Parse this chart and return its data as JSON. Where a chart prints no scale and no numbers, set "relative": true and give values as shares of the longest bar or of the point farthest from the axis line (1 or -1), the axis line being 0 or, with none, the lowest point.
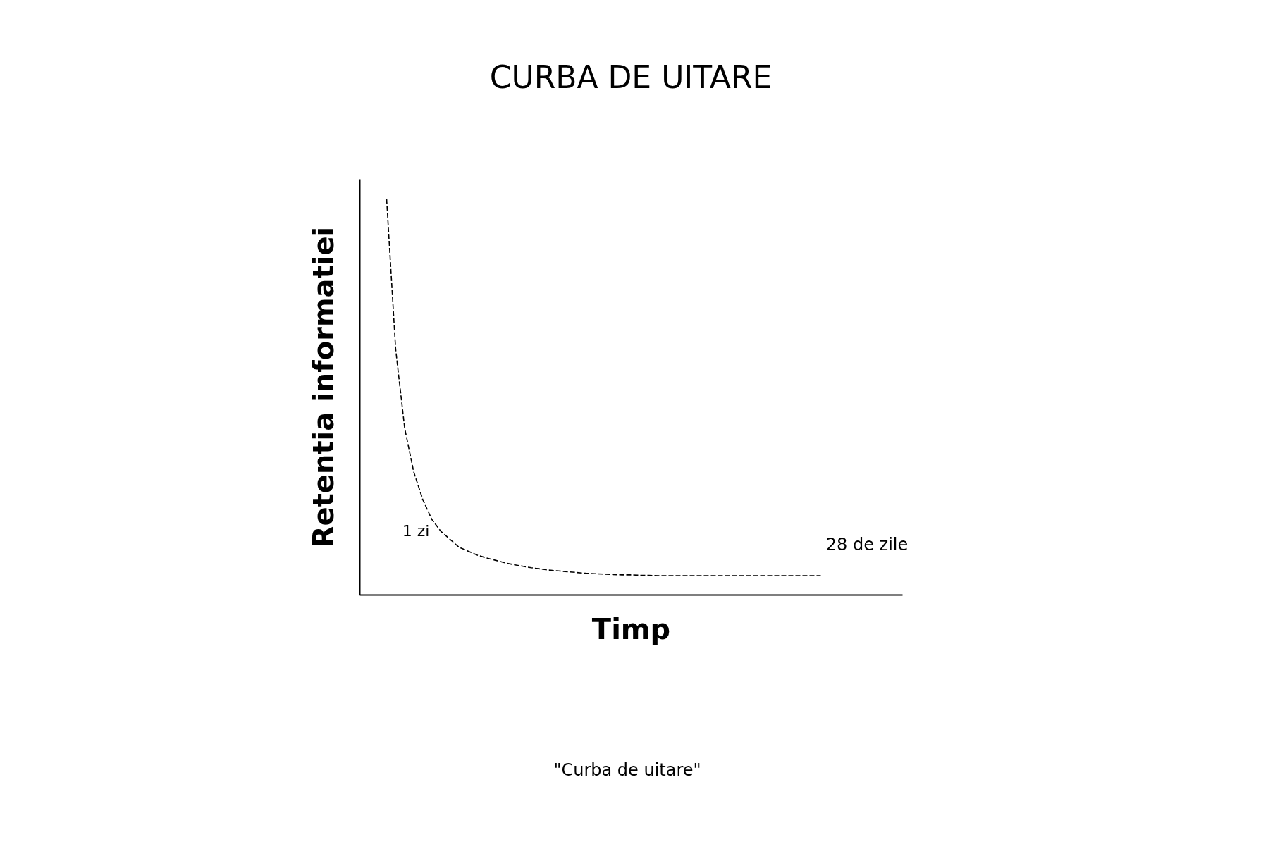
{
  "chart_data": {
    "type": "line",
    "title": "CURBA DE UITARE",
    "xlabel": "Timp",
    "ylabel": "Retentia informatiei",
    "relative": true,
    "line_style": "dashed",
    "marker": "none",
    "tick_labels": false,
    "grid": false,
    "legend": false,
    "annotations": [
      "1 zi",
      "28 de zile",
      "\"Curba de uitare\""
    ],
    "categories": [
      null,
      null,
      null,
      null,
      null,
      null,
      null,
      null,
      null,
      null,
      null,
      null,
      null,
      null,
      null,
      null,
      null,
      null,
      null,
      null,
      null,
      null,
      null,
      null,
      null,
      null,
      null,
      null,
      null,
      null,
      null,
      null,
      null,
      null,
      null,
      null,
      null,
      null,
      null,
      null,
      null,
      null,
      null,
      null,
      null,
      null,
      null,
      null,
      null
    ],
    "series": [
      {
        "color": "#000000",
        "values": [
          1.0,
          0.62,
          0.42,
          0.31,
          0.24,
          0.19,
          0.16,
          0.14,
          0.12,
          0.11,
          0.1,
          0.093,
          0.087,
          0.081,
          0.076,
          0.072,
          0.068,
          0.065,
          0.062,
          0.06,
          0.058,
          0.056,
          0.054,
          0.053,
          0.052,
          0.051,
          0.05,
          0.05,
          0.049,
          0.049,
          0.048,
          0.048,
          0.048,
          0.048,
          0.048,
          0.048,
          0.048,
          0.048,
          0.048,
          0.048,
          0.048,
          0.048,
          0.048,
          0.048,
          0.048,
          0.048,
          0.048,
          0.048,
          0.048
        ]
      }
    ]
  }
}
